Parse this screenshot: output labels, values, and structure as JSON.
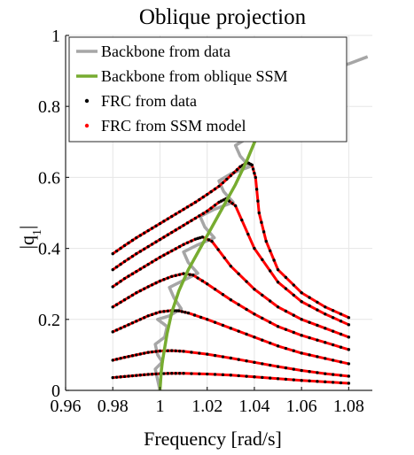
{
  "chart_data": {
    "type": "line",
    "title": "Oblique projection",
    "xlabel": "Frequency [rad/s]",
    "ylabel_base": "|q",
    "ylabel_sub": "1",
    "ylabel_end": "|",
    "xlim": [
      0.96,
      1.09
    ],
    "ylim": [
      0,
      1
    ],
    "xticks": [
      0.96,
      0.98,
      1,
      1.02,
      1.04,
      1.06,
      1.08
    ],
    "xtick_labels": [
      "0.96",
      "0.98",
      "1",
      "1.02",
      "1.04",
      "1.06",
      "1.08"
    ],
    "yticks": [
      0,
      0.2,
      0.4,
      0.6,
      0.8,
      1
    ],
    "ytick_labels": [
      "0",
      "0.2",
      "0.4",
      "0.6",
      "0.8",
      "1"
    ],
    "grid": true,
    "legend_position": "top-left",
    "legend": [
      {
        "label": "Backbone from data",
        "marker": "line",
        "color": "#a6a6a6"
      },
      {
        "label": "Backbone from oblique SSM",
        "marker": "line",
        "color": "#77ac30"
      },
      {
        "label": "FRC from data",
        "marker": "dot",
        "color": "#000000"
      },
      {
        "label": "FRC from SSM model",
        "marker": "dot",
        "color": "#ff0000"
      }
    ],
    "colors": {
      "backbone_data": "#a6a6a6",
      "backbone_ssm": "#77ac30",
      "frc_data": "#000000",
      "frc_model": "#ff0000"
    },
    "backbone_ssm": {
      "x": [
        1.0,
        1.0005,
        1.001,
        1.002,
        1.003,
        1.005,
        1.008,
        1.012,
        1.017,
        1.022,
        1.027,
        1.032,
        1.037,
        1.042,
        1.047,
        1.05
      ],
      "y": [
        0.0,
        0.05,
        0.08,
        0.12,
        0.16,
        0.22,
        0.28,
        0.34,
        0.4,
        0.46,
        0.52,
        0.58,
        0.65,
        0.73,
        0.8,
        0.85
      ]
    },
    "backbone_data": {
      "x": [
        1.0,
        0.999,
        0.998,
        1.001,
        0.999,
        0.998,
        1.002,
        1.003,
        0.999,
        1.004,
        1.009,
        1.006,
        1.004,
        1.01,
        1.016,
        1.012,
        1.01,
        1.016,
        1.023,
        1.019,
        1.017,
        1.023,
        1.031,
        1.027,
        1.025,
        1.03,
        1.038,
        1.034,
        1.032,
        1.037,
        1.045,
        1.042,
        1.039,
        1.043,
        1.052,
        1.06,
        1.07,
        1.08,
        1.088
      ],
      "y": [
        0.0,
        0.03,
        0.06,
        0.08,
        0.1,
        0.13,
        0.15,
        0.18,
        0.2,
        0.21,
        0.23,
        0.26,
        0.29,
        0.31,
        0.33,
        0.36,
        0.39,
        0.41,
        0.43,
        0.46,
        0.49,
        0.51,
        0.53,
        0.56,
        0.59,
        0.61,
        0.63,
        0.66,
        0.69,
        0.71,
        0.73,
        0.76,
        0.79,
        0.81,
        0.84,
        0.87,
        0.9,
        0.92,
        0.94
      ]
    },
    "frc_series": [
      {
        "x": [
          0.98,
          0.985,
          0.99,
          0.995,
          1.0,
          1.005,
          1.01,
          1.02,
          1.03,
          1.04,
          1.05,
          1.06,
          1.07,
          1.08
        ],
        "y": [
          0.036,
          0.039,
          0.042,
          0.045,
          0.047,
          0.048,
          0.048,
          0.046,
          0.043,
          0.038,
          0.033,
          0.028,
          0.024,
          0.02
        ]
      },
      {
        "x": [
          0.98,
          0.985,
          0.99,
          0.995,
          1.0,
          1.005,
          1.01,
          1.02,
          1.03,
          1.04,
          1.05,
          1.06,
          1.07,
          1.08
        ],
        "y": [
          0.085,
          0.093,
          0.1,
          0.107,
          0.111,
          0.112,
          0.11,
          0.102,
          0.091,
          0.079,
          0.067,
          0.056,
          0.047,
          0.04
        ]
      },
      {
        "x": [
          0.98,
          0.985,
          0.99,
          0.995,
          1.0,
          1.005,
          1.008,
          1.012,
          1.02,
          1.03,
          1.04,
          1.05,
          1.06,
          1.07,
          1.08
        ],
        "y": [
          0.165,
          0.18,
          0.195,
          0.21,
          0.221,
          0.225,
          0.224,
          0.218,
          0.2,
          0.175,
          0.15,
          0.125,
          0.105,
          0.09,
          0.075
        ]
      },
      {
        "x": [
          0.98,
          0.985,
          0.99,
          0.995,
          1.0,
          1.005,
          1.01,
          1.014,
          1.02,
          1.03,
          1.04,
          1.05,
          1.06,
          1.07,
          1.08
        ],
        "y": [
          0.235,
          0.255,
          0.275,
          0.292,
          0.308,
          0.321,
          0.329,
          0.325,
          0.3,
          0.255,
          0.215,
          0.18,
          0.155,
          0.135,
          0.115
        ]
      },
      {
        "x": [
          0.98,
          0.985,
          0.99,
          0.995,
          1.0,
          1.005,
          1.01,
          1.015,
          1.018,
          1.022,
          1.03,
          1.04,
          1.05,
          1.06,
          1.07,
          1.08
        ],
        "y": [
          0.292,
          0.315,
          0.335,
          0.355,
          0.375,
          0.393,
          0.411,
          0.426,
          0.432,
          0.42,
          0.35,
          0.285,
          0.235,
          0.2,
          0.175,
          0.15
        ]
      },
      {
        "x": [
          0.98,
          0.985,
          0.99,
          0.995,
          1.0,
          1.005,
          1.01,
          1.015,
          1.02,
          1.025,
          1.028,
          1.032,
          1.04,
          1.05,
          1.06,
          1.07,
          1.08
        ],
        "y": [
          0.34,
          0.363,
          0.385,
          0.405,
          0.425,
          0.445,
          0.465,
          0.485,
          0.505,
          0.53,
          0.54,
          0.52,
          0.4,
          0.305,
          0.25,
          0.215,
          0.185
        ]
      },
      {
        "x": [
          0.98,
          0.985,
          0.99,
          0.995,
          1.0,
          1.005,
          1.01,
          1.015,
          1.02,
          1.025,
          1.03,
          1.034,
          1.037,
          1.039,
          1.0405,
          1.042,
          1.045,
          1.05,
          1.06,
          1.07,
          1.08
        ],
        "y": [
          0.385,
          0.408,
          0.43,
          0.45,
          0.47,
          0.49,
          0.51,
          0.53,
          0.552,
          0.575,
          0.605,
          0.63,
          0.642,
          0.635,
          0.6,
          0.5,
          0.42,
          0.34,
          0.275,
          0.235,
          0.205
        ]
      }
    ]
  }
}
